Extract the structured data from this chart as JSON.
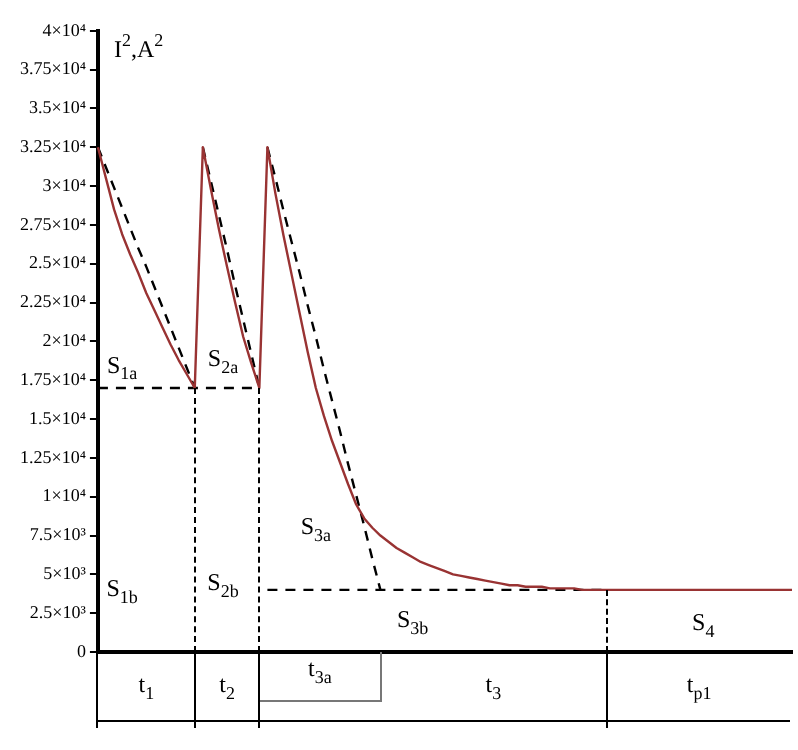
{
  "chart_data": {
    "type": "line",
    "ylabel": "I$^{2}$,A$^{2}$",
    "categories": [
      null,
      null,
      null,
      null,
      null,
      null,
      null,
      null,
      null,
      null,
      null,
      null,
      null,
      null,
      null,
      null,
      null,
      null,
      null,
      null,
      null,
      null,
      null,
      null,
      null,
      null,
      null,
      null,
      null,
      null,
      null,
      null,
      null,
      null,
      null,
      null,
      null,
      null,
      null,
      null,
      null,
      null,
      null,
      null,
      null,
      null,
      null,
      null,
      null,
      null,
      null,
      null,
      null,
      null,
      null,
      null,
      null,
      null,
      null,
      null,
      null,
      null,
      null,
      null,
      null,
      null,
      null,
      null,
      null,
      null,
      null,
      null,
      null,
      null,
      null,
      null,
      null,
      null,
      null,
      null,
      null,
      null,
      null,
      null,
      null,
      null,
      null
    ],
    "ylim": [
      0,
      40000
    ],
    "yticks": [
      {
        "value": 0,
        "label": "0"
      },
      {
        "value": 2500,
        "label": "2.5×10³"
      },
      {
        "value": 5000,
        "label": "5×10³"
      },
      {
        "value": 7500,
        "label": "7.5×10³"
      },
      {
        "value": 10000,
        "label": "1×10⁴"
      },
      {
        "value": 12500,
        "label": "1.25×10⁴"
      },
      {
        "value": 15000,
        "label": "1.5×10⁴"
      },
      {
        "value": 17500,
        "label": "1.75×10⁴"
      },
      {
        "value": 20000,
        "label": "2×10⁴"
      },
      {
        "value": 22500,
        "label": "2.25×10⁴"
      },
      {
        "value": 25000,
        "label": "2.5×10⁴"
      },
      {
        "value": 27500,
        "label": "2.75×10⁴"
      },
      {
        "value": 30000,
        "label": "3×10⁴"
      },
      {
        "value": 32500,
        "label": "3.25×10⁴"
      },
      {
        "value": 35000,
        "label": "3.5×10⁴"
      },
      {
        "value": 37500,
        "label": "3.75×10⁴"
      },
      {
        "value": 40000,
        "label": "4×10⁴"
      }
    ],
    "tick_labels": "y",
    "grid": false,
    "legend": false,
    "marker": "none",
    "series": [
      {
        "color": "#993333",
        "line_style": "solid",
        "values": [
          32500,
          30500,
          28500,
          26900,
          25600,
          24400,
          23100,
          22000,
          20900,
          19800,
          18800,
          17900,
          17000,
          32500,
          29800,
          27200,
          24800,
          22500,
          20300,
          18600,
          17000,
          32500,
          29500,
          26800,
          24300,
          21800,
          19300,
          17000,
          15200,
          13600,
          12200,
          10800,
          9500,
          8600,
          8000,
          7500,
          7100,
          6700,
          6400,
          6100,
          5800,
          5600,
          5400,
          5200,
          5000,
          4900,
          4800,
          4700,
          4600,
          4500,
          4400,
          4300,
          4300,
          4200,
          4200,
          4200,
          4100,
          4100,
          4100,
          4100,
          4000,
          4000,
          4000,
          4000,
          4000,
          4000,
          4000,
          4000,
          4000,
          4000,
          4000,
          4000,
          4000,
          4000,
          4000,
          4000,
          4000,
          4000,
          4000,
          4000,
          4000,
          4000,
          4000,
          4000,
          4000,
          4000,
          4000
        ]
      },
      {
        "color": "#000000",
        "line_style": "dashed",
        "values": [
          32500,
          31200,
          29900,
          28600,
          27300,
          26000,
          24800,
          23500,
          22200,
          20900,
          19600,
          18300,
          17000,
          null,
          null,
          null,
          null,
          null,
          null,
          null,
          null,
          null,
          null,
          null,
          null,
          null,
          null,
          null,
          null,
          null,
          null,
          null,
          null,
          null,
          null,
          null,
          null,
          null,
          null,
          null,
          null,
          null,
          null,
          null,
          null,
          null,
          null,
          null,
          null,
          null,
          null,
          null,
          null,
          null,
          null,
          null,
          null,
          null,
          null,
          null,
          null,
          null,
          null,
          null,
          null,
          null,
          null,
          null,
          null,
          null,
          null,
          null,
          null,
          null,
          null,
          null,
          null,
          null,
          null,
          null,
          null,
          null,
          null,
          null,
          null,
          null,
          null
        ]
      },
      {
        "color": "#000000",
        "line_style": "dashed",
        "values": [
          null,
          null,
          null,
          null,
          null,
          null,
          null,
          null,
          null,
          null,
          null,
          null,
          null,
          32500,
          30300,
          28100,
          25900,
          23600,
          21400,
          19200,
          17000,
          null,
          null,
          null,
          null,
          null,
          null,
          null,
          null,
          null,
          null,
          null,
          null,
          null,
          null,
          null,
          null,
          null,
          null,
          null,
          null,
          null,
          null,
          null,
          null,
          null,
          null,
          null,
          null,
          null,
          null,
          null,
          null,
          null,
          null,
          null,
          null,
          null,
          null,
          null,
          null,
          null,
          null,
          null,
          null,
          null,
          null,
          null,
          null,
          null,
          null,
          null,
          null,
          null,
          null,
          null,
          null,
          null,
          null,
          null,
          null,
          null,
          null,
          null,
          null,
          null,
          null
        ]
      },
      {
        "color": "#000000",
        "line_style": "dashed",
        "values": [
          17000,
          17000,
          17000,
          17000,
          17000,
          17000,
          17000,
          17000,
          17000,
          17000,
          17000,
          17000,
          17000,
          17000,
          17000,
          17000,
          17000,
          17000,
          17000,
          17000,
          17000,
          null,
          null,
          null,
          null,
          null,
          null,
          null,
          null,
          null,
          null,
          null,
          null,
          null,
          null,
          null,
          null,
          null,
          null,
          null,
          null,
          null,
          null,
          null,
          null,
          null,
          null,
          null,
          null,
          null,
          null,
          null,
          null,
          null,
          null,
          null,
          null,
          null,
          null,
          null,
          null,
          null,
          null,
          null,
          null,
          null,
          null,
          null,
          null,
          null,
          null,
          null,
          null,
          null,
          null,
          null,
          null,
          null,
          null,
          null,
          null,
          null,
          null,
          null,
          null,
          null,
          null
        ]
      },
      {
        "color": "#000000",
        "line_style": "dashed",
        "values": [
          null,
          null,
          null,
          null,
          null,
          null,
          null,
          null,
          null,
          null,
          null,
          null,
          null,
          null,
          null,
          null,
          null,
          null,
          null,
          null,
          null,
          32500,
          30500,
          28400,
          26400,
          24400,
          22300,
          20300,
          18200,
          16200,
          14200,
          12100,
          10100,
          8100,
          6000,
          4000,
          null,
          null,
          null,
          null,
          null,
          null,
          null,
          null,
          null,
          null,
          null,
          null,
          null,
          null,
          null,
          null,
          null,
          null,
          null,
          null,
          null,
          null,
          null,
          null,
          null,
          null,
          null,
          null,
          null,
          null,
          null,
          null,
          null,
          null,
          null,
          null,
          null,
          null,
          null,
          null,
          null,
          null,
          null,
          null,
          null,
          null,
          null,
          null,
          null,
          null,
          null
        ]
      },
      {
        "color": "#000000",
        "line_style": "dashed",
        "values": [
          null,
          null,
          null,
          null,
          null,
          null,
          null,
          null,
          null,
          null,
          null,
          null,
          null,
          null,
          null,
          null,
          null,
          null,
          null,
          null,
          null,
          4000,
          4000,
          4000,
          4000,
          4000,
          4000,
          4000,
          4000,
          4000,
          4000,
          4000,
          4000,
          4000,
          4000,
          4000,
          4000,
          4000,
          4000,
          4000,
          4000,
          4000,
          4000,
          4000,
          4000,
          4000,
          4000,
          4000,
          4000,
          4000,
          4000,
          4000,
          4000,
          4000,
          4000,
          4000,
          4000,
          4000,
          4000,
          4000,
          4000,
          4000,
          4000,
          4000,
          null,
          null,
          null,
          null,
          null,
          null,
          null,
          null,
          null,
          null,
          null,
          null,
          null,
          null,
          null,
          null,
          null,
          null,
          null,
          null,
          null,
          null,
          null
        ]
      }
    ],
    "annotations": [
      "S$_{1a}$",
      "S$_{1b}$",
      "S$_{2a}$",
      "S$_{2b}$",
      "S$_{3a}$",
      "S$_{3b}$",
      "S$_{4}$",
      "t$_{1}$",
      "t$_{2}$",
      "t$_{3a}$",
      "t$_{3}$",
      "t$_{p1}$"
    ]
  }
}
